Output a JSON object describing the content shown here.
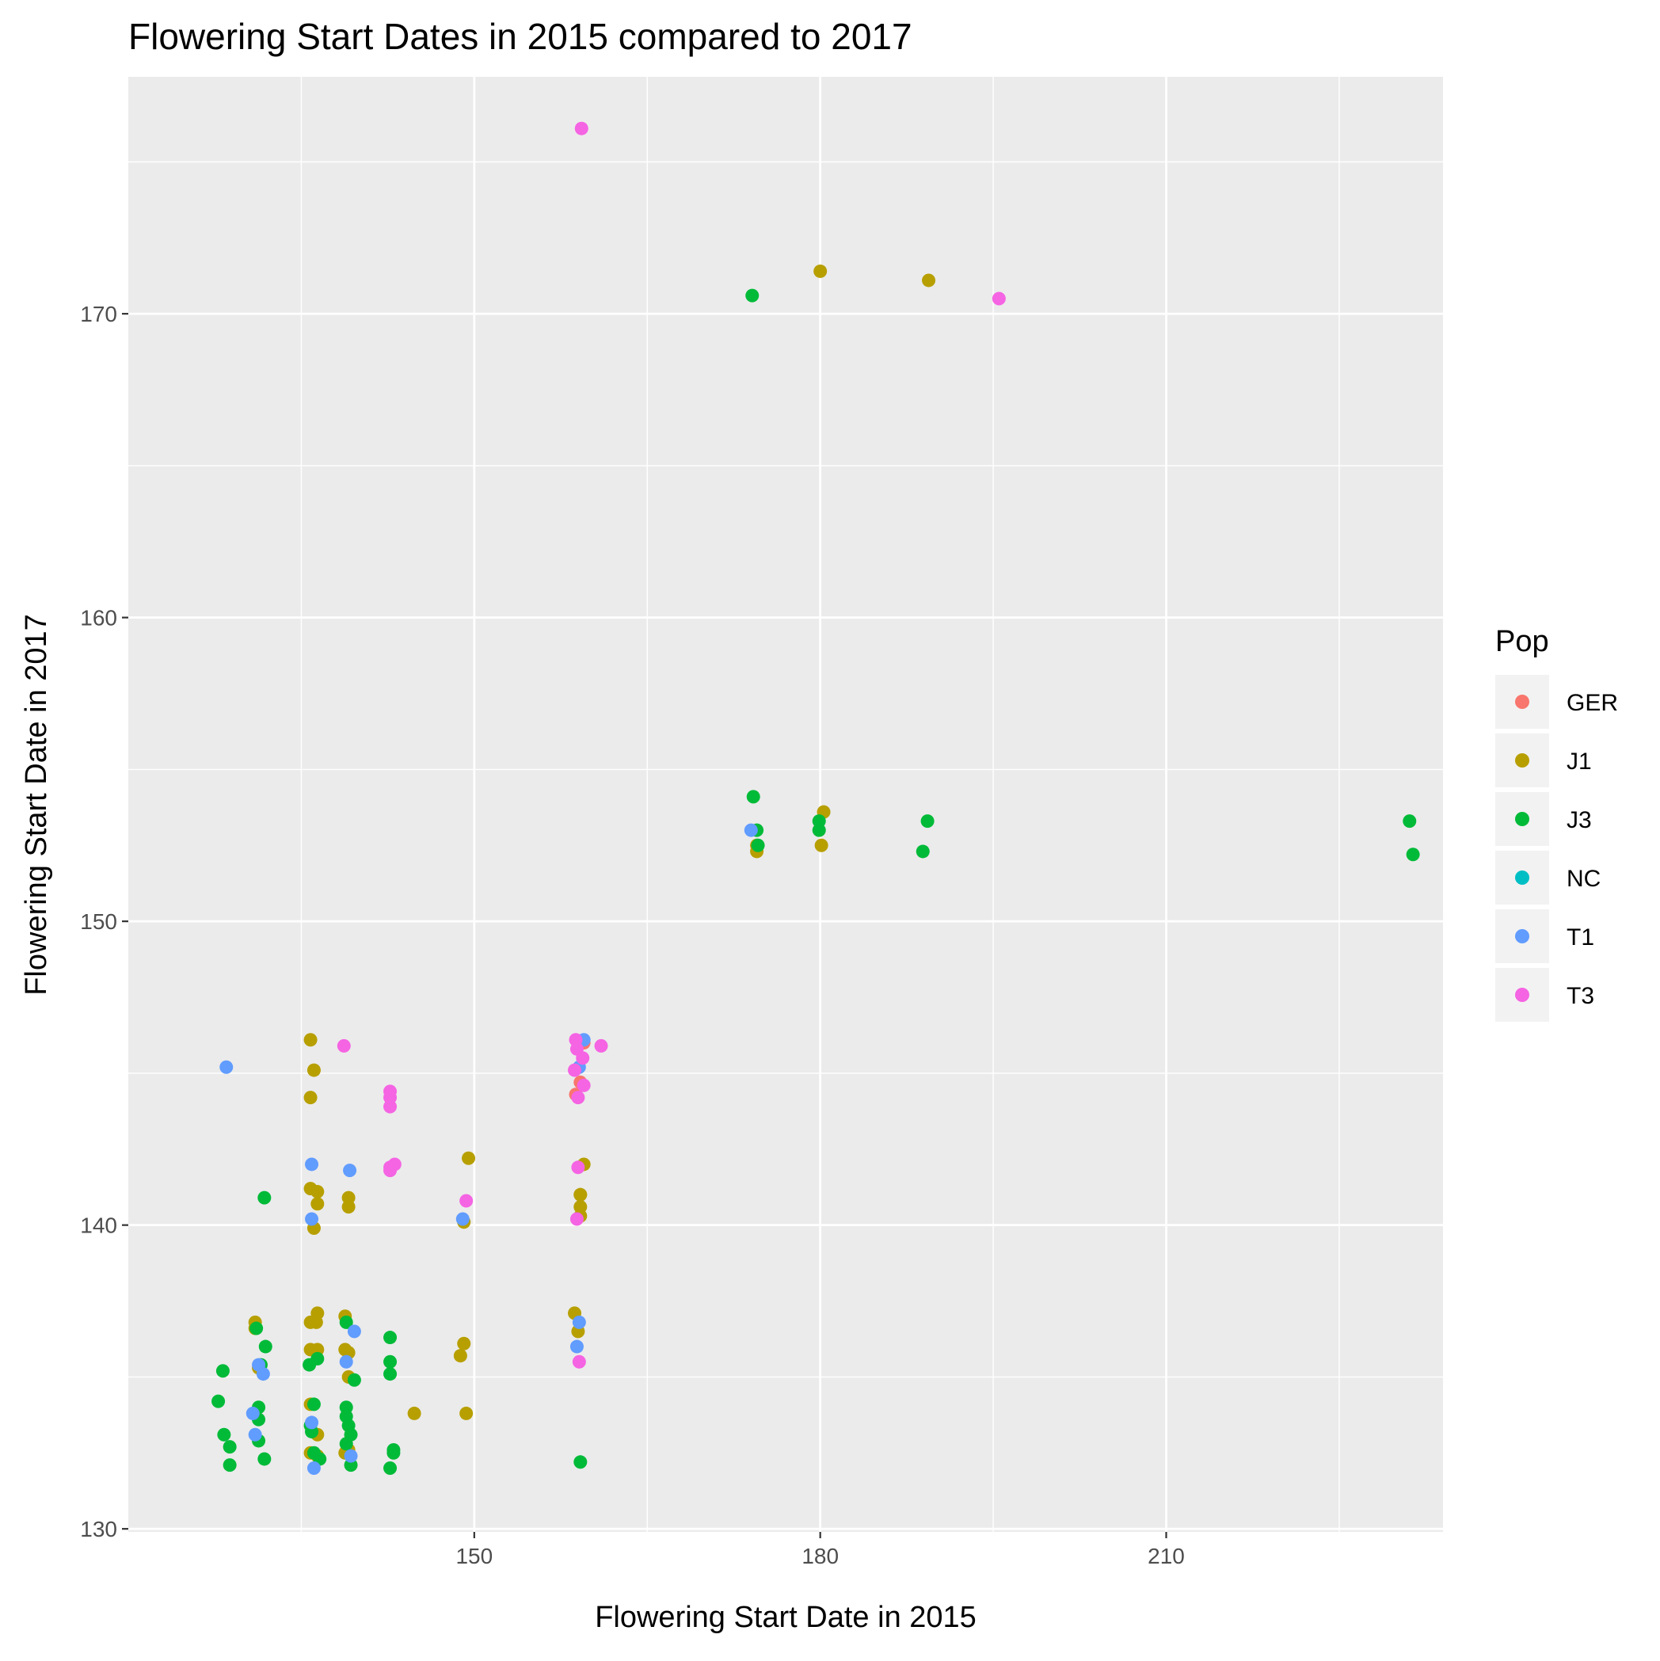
{
  "chart_data": {
    "type": "scatter",
    "title": "Flowering Start Dates in 2015 compared to 2017",
    "xlabel": "Flowering Start Date in 2015",
    "ylabel": "Flowering Start Date in 2017",
    "xlim": [
      120,
      234
    ],
    "ylim": [
      129.9,
      177.8
    ],
    "x_ticks": [
      150,
      180,
      210
    ],
    "y_ticks": [
      130,
      140,
      150,
      160,
      170
    ],
    "grid": true,
    "legend": {
      "title": "Pop",
      "position": "right"
    },
    "series": [
      {
        "name": "GER",
        "color": "#F8766D",
        "points": [
          [
            159.5,
            146.0
          ],
          [
            159.2,
            144.7
          ],
          [
            158.8,
            144.3
          ]
        ]
      },
      {
        "name": "J1",
        "color": "#B79F00",
        "points": [
          [
            131,
            136.8
          ],
          [
            131,
            136.6
          ],
          [
            131.3,
            135.3
          ],
          [
            131.4,
            135.3
          ],
          [
            135.8,
            146.1
          ],
          [
            135.8,
            144.2
          ],
          [
            135.8,
            141.2
          ],
          [
            135.8,
            136.8
          ],
          [
            135.8,
            135.9
          ],
          [
            135.8,
            134.1
          ],
          [
            135.8,
            132.5
          ],
          [
            136.1,
            145.1
          ],
          [
            136.1,
            139.9
          ],
          [
            136.3,
            136.8
          ],
          [
            136.4,
            141.1
          ],
          [
            136.4,
            140.7
          ],
          [
            136.4,
            137.1
          ],
          [
            136.4,
            135.9
          ],
          [
            136.4,
            133.1
          ],
          [
            136.4,
            132.4
          ],
          [
            138.8,
            137.0
          ],
          [
            138.8,
            135.9
          ],
          [
            138.8,
            132.5
          ],
          [
            139.1,
            140.9
          ],
          [
            139.1,
            140.6
          ],
          [
            139.1,
            135.8
          ],
          [
            139.1,
            135.0
          ],
          [
            139.1,
            132.6
          ],
          [
            144.8,
            133.8
          ],
          [
            148.8,
            135.7
          ],
          [
            149.1,
            140.1
          ],
          [
            149.1,
            136.1
          ],
          [
            149.5,
            142.2
          ],
          [
            149.3,
            133.8
          ],
          [
            158.7,
            137.1
          ],
          [
            159.0,
            136.5
          ],
          [
            159.2,
            141.0
          ],
          [
            159.2,
            140.6
          ],
          [
            159.2,
            140.3
          ],
          [
            159.2,
            141.0
          ],
          [
            159.5,
            142.0
          ],
          [
            174.5,
            152.5
          ],
          [
            174.5,
            152.3
          ],
          [
            180.3,
            153.6
          ],
          [
            180.1,
            152.5
          ],
          [
            180,
            171.4
          ],
          [
            189.4,
            171.1
          ]
        ]
      },
      {
        "name": "J3",
        "color": "#00BA38",
        "points": [
          [
            127.8,
            134.2
          ],
          [
            128.2,
            135.2
          ],
          [
            128.3,
            133.1
          ],
          [
            128.8,
            132.7
          ],
          [
            128.8,
            132.1
          ],
          [
            131.1,
            136.6
          ],
          [
            131.3,
            134.0
          ],
          [
            131.3,
            133.6
          ],
          [
            131.3,
            132.9
          ],
          [
            131.5,
            135.4
          ],
          [
            131.9,
            136.0
          ],
          [
            131.8,
            132.3
          ],
          [
            131.8,
            140.9
          ],
          [
            135.7,
            135.4
          ],
          [
            135.8,
            133.4
          ],
          [
            135.9,
            133.2
          ],
          [
            136.1,
            134.1
          ],
          [
            136.1,
            132.5
          ],
          [
            136.4,
            135.6
          ],
          [
            136.6,
            132.3
          ],
          [
            138.9,
            136.8
          ],
          [
            138.9,
            134.0
          ],
          [
            138.9,
            133.7
          ],
          [
            139.1,
            133.4
          ],
          [
            138.9,
            132.8
          ],
          [
            139.3,
            133.1
          ],
          [
            139.3,
            132.1
          ],
          [
            139.6,
            134.9
          ],
          [
            142.7,
            136.3
          ],
          [
            142.7,
            135.5
          ],
          [
            142.7,
            135.1
          ],
          [
            142.7,
            132.0
          ],
          [
            143.0,
            132.6
          ],
          [
            143.0,
            132.5
          ],
          [
            159.2,
            132.2
          ],
          [
            174.2,
            154.1
          ],
          [
            174.5,
            153.0
          ],
          [
            174.6,
            152.5
          ],
          [
            179.9,
            153.3
          ],
          [
            179.9,
            153.0
          ],
          [
            188.9,
            152.3
          ],
          [
            189.3,
            153.3
          ],
          [
            231.1,
            153.3
          ],
          [
            231.4,
            152.2
          ],
          [
            174.1,
            170.6
          ]
        ]
      },
      {
        "name": "NC",
        "color": "#00BFC4",
        "points": []
      },
      {
        "name": "T1",
        "color": "#619CFF",
        "points": [
          [
            128.5,
            145.2
          ],
          [
            130.8,
            133.8
          ],
          [
            131.0,
            133.1
          ],
          [
            131.3,
            135.4
          ],
          [
            131.7,
            135.1
          ],
          [
            135.9,
            142.0
          ],
          [
            135.9,
            140.2
          ],
          [
            135.9,
            133.5
          ],
          [
            136.1,
            132.0
          ],
          [
            138.9,
            135.5
          ],
          [
            139.2,
            141.8
          ],
          [
            139.3,
            132.4
          ],
          [
            139.6,
            136.5
          ],
          [
            149.0,
            140.2
          ],
          [
            158.9,
            136.0
          ],
          [
            159.1,
            136.8
          ],
          [
            159.1,
            145.2
          ],
          [
            159.5,
            146.1
          ],
          [
            174.0,
            153.0
          ]
        ]
      },
      {
        "name": "T3",
        "color": "#F564E3",
        "points": [
          [
            138.7,
            145.9
          ],
          [
            142.7,
            144.4
          ],
          [
            142.7,
            144.2
          ],
          [
            142.7,
            143.9
          ],
          [
            142.7,
            141.9
          ],
          [
            142.7,
            141.8
          ],
          [
            143.1,
            142.0
          ],
          [
            149.3,
            140.8
          ],
          [
            158.8,
            146.1
          ],
          [
            158.9,
            145.8
          ],
          [
            158.7,
            145.1
          ],
          [
            159.0,
            144.2
          ],
          [
            159.4,
            145.5
          ],
          [
            159.5,
            144.6
          ],
          [
            159.0,
            141.9
          ],
          [
            158.9,
            140.2
          ],
          [
            159.1,
            135.5
          ],
          [
            161.0,
            145.9
          ],
          [
            159.3,
            176.1
          ],
          [
            195.5,
            170.5
          ]
        ]
      }
    ]
  }
}
